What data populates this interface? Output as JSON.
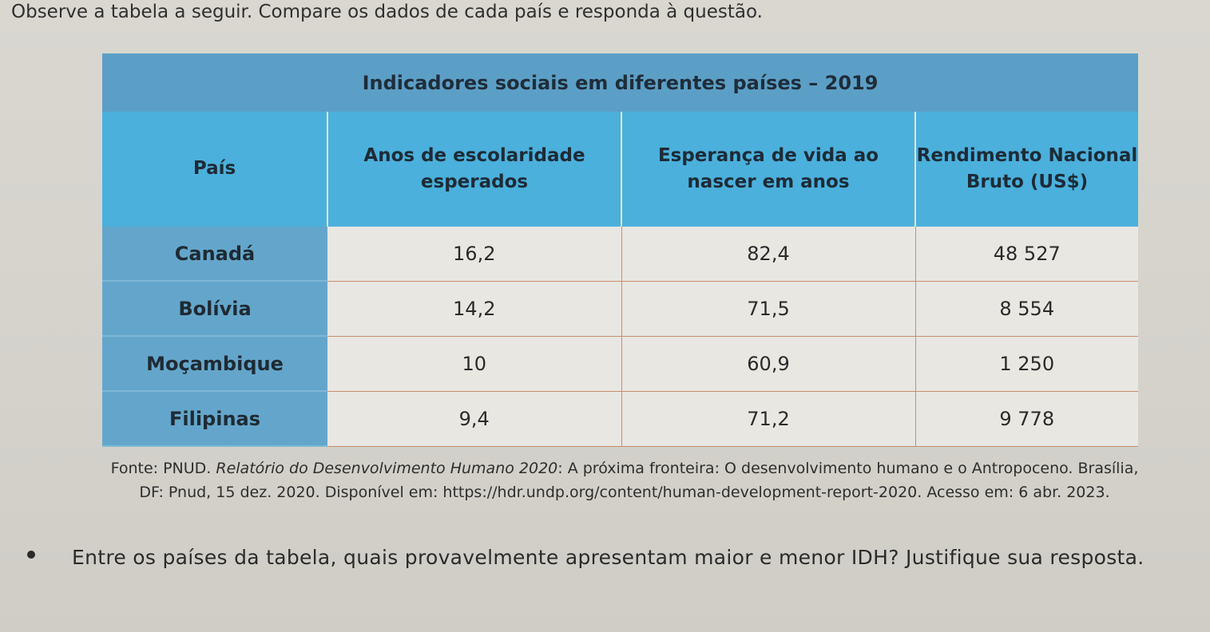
{
  "instruction": "Observe a tabela a seguir. Compare os dados de cada país e responda à questão.",
  "table": {
    "title": "Indicadores sociais em diferentes países – 2019",
    "headers": [
      "País",
      "Anos de escolaridade esperados",
      "Esperança de vida ao nascer em anos",
      "Rendimento Nacional Bruto (US$)"
    ],
    "rows": [
      [
        "Canadá",
        "16,2",
        "82,4",
        "48 527"
      ],
      [
        "Bolívia",
        "14,2",
        "71,5",
        "8 554"
      ],
      [
        "Moçambique",
        "10",
        "60,9",
        "1 250"
      ],
      [
        "Filipinas",
        "9,4",
        "71,2",
        "9 778"
      ]
    ]
  },
  "source": {
    "prefix": "Fonte: PNUD. ",
    "work": "Relatório do Desenvolvimento Humano 2020",
    "line1": ": A próxima fronteira: O desenvolvimento humano e o Antropoceno. Brasília,",
    "line2": "DF: Pnud, 15 dez. 2020. Disponível em: https://hdr.undp.org/content/human-development-report-2020. Acesso em: 6 abr. 2023."
  },
  "question": "Entre os países da tabela, quais provavelmente apresentam maior e menor IDH? Justifique sua resposta."
}
